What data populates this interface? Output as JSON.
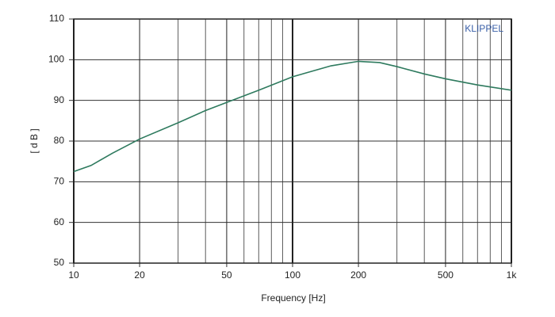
{
  "chart_data": {
    "type": "line",
    "xlabel": "Frequency [Hz]",
    "ylabel": "[ d B ]",
    "annotation": "KLIPPEL",
    "x": [
      10,
      12,
      15,
      20,
      30,
      40,
      50,
      70,
      100,
      150,
      200,
      250,
      300,
      400,
      500,
      700,
      1000
    ],
    "series": [
      {
        "name": null,
        "color": "#2e7a5e",
        "values": [
          72.5,
          74,
          77,
          80.5,
          84.5,
          87.5,
          89.5,
          92.5,
          95.8,
          98.5,
          99.6,
          99.3,
          98.3,
          96.5,
          95.3,
          93.8,
          92.5
        ]
      }
    ],
    "xscale": "log",
    "xlim": [
      10,
      1000
    ],
    "ylim": [
      50,
      110
    ],
    "xticks": [
      10,
      20,
      50,
      100,
      200,
      500,
      {
        "value": 1000,
        "label": "1k"
      }
    ],
    "xminorticks": [
      30,
      40,
      60,
      70,
      80,
      90,
      300,
      400,
      600,
      700,
      800,
      900
    ],
    "yticks": [
      50,
      60,
      70,
      80,
      90,
      100,
      110
    ],
    "grid": true
  }
}
